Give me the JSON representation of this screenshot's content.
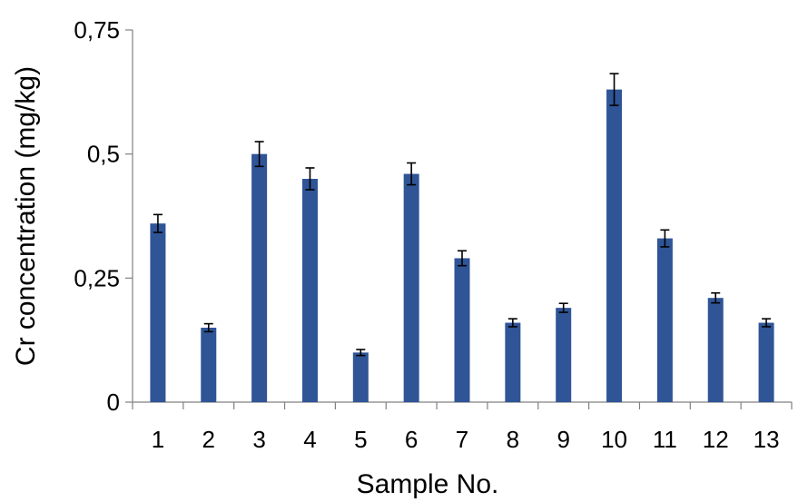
{
  "chart_data": {
    "type": "bar",
    "categories": [
      "1",
      "2",
      "3",
      "4",
      "5",
      "6",
      "7",
      "8",
      "9",
      "10",
      "11",
      "12",
      "13"
    ],
    "series": [
      {
        "values": [
          0.36,
          0.15,
          0.5,
          0.45,
          0.1,
          0.46,
          0.29,
          0.16,
          0.19,
          0.63,
          0.33,
          0.21,
          0.16
        ],
        "errors": [
          0.018,
          0.008,
          0.025,
          0.022,
          0.006,
          0.022,
          0.015,
          0.008,
          0.009,
          0.032,
          0.017,
          0.01,
          0.008
        ],
        "color": "#2f5597"
      }
    ],
    "title": "",
    "xlabel": "Sample No.",
    "ylabel": "Cr concentration  (mg/kg)",
    "ylim": [
      0,
      0.75
    ],
    "yticks": [
      "0",
      "0,25",
      "0,5",
      "0,75"
    ],
    "ytick_values": [
      0,
      0.25,
      0.5,
      0.75
    ],
    "grid": false,
    "legend": "none",
    "error_bars": true
  }
}
